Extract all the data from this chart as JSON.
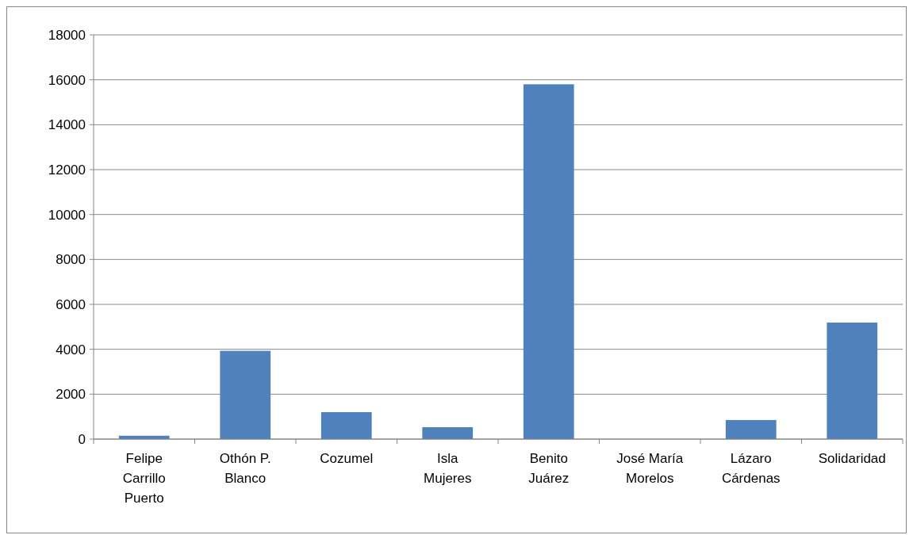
{
  "chart_data": {
    "type": "bar",
    "categories": [
      "Felipe Carrillo Puerto",
      "Othón P. Blanco",
      "Cozumel",
      "Isla Mujeres",
      "Benito Juárez",
      "José María Morelos",
      "Lázaro Cárdenas",
      "Solidaridad"
    ],
    "values": [
      150,
      3930,
      1200,
      530,
      15800,
      0,
      850,
      5190
    ],
    "color": "#4f81bd",
    "ylim": [
      0,
      18000
    ],
    "yticks": [
      0,
      2000,
      4000,
      6000,
      8000,
      10000,
      12000,
      14000,
      16000,
      18000
    ],
    "grid": "y"
  }
}
